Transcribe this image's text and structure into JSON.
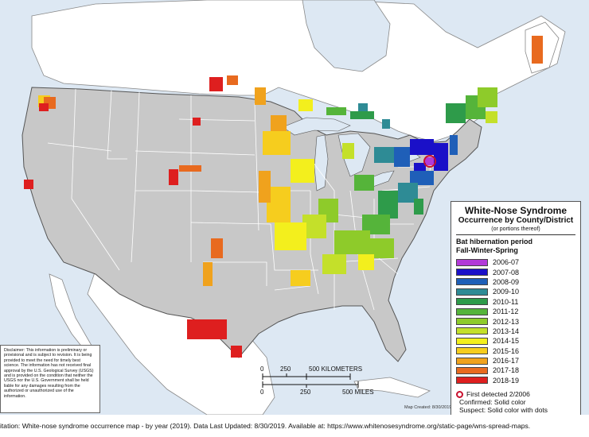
{
  "legend": {
    "title": "White-Nose Syndrome",
    "subtitle": "Occurrence by County/District",
    "note": "(or portions thereof)",
    "period_line1": "Bat hibernation period",
    "period_line2": "Fall-Winter-Spring",
    "items": [
      {
        "label": "2006-07",
        "color": "#b23ad8"
      },
      {
        "label": "2007-08",
        "color": "#1a10c8"
      },
      {
        "label": "2008-09",
        "color": "#1f5fb8"
      },
      {
        "label": "2009-10",
        "color": "#2e8b95"
      },
      {
        "label": "2010-11",
        "color": "#2e9b4a"
      },
      {
        "label": "2011-12",
        "color": "#55b43a"
      },
      {
        "label": "2012-13",
        "color": "#8ecb2a"
      },
      {
        "label": "2013-14",
        "color": "#c4e02a"
      },
      {
        "label": "2014-15",
        "color": "#f3ef1d"
      },
      {
        "label": "2015-16",
        "color": "#f6cd1e"
      },
      {
        "label": "2016-17",
        "color": "#f0a21d"
      },
      {
        "label": "2017-18",
        "color": "#e86a1f"
      },
      {
        "label": "2018-19",
        "color": "#de1f1f"
      }
    ],
    "first_detected": "First detected 2/2006",
    "confirmed": "Confirmed:  Solid color",
    "suspect": "Suspect:  Solid color with dots"
  },
  "scale": {
    "km_ticks": [
      "0",
      "250",
      "500 KILOMETERS"
    ],
    "mile_ticks": [
      "0",
      "250",
      "500 MILES"
    ]
  },
  "disclaimer": "Disclaimer: This information is preliminary or provisional and is subject to revision. It is being provided to meet the need for timely best science. The information has not received final approval by the U.S. Geological Survey (USGS) and is provided on the condition that neither the USGS nor the U.S. Government shall be held liable for any damages resulting from the authorized or unauthorized use of the information.",
  "map_created": "Map Created:  8/30/2019",
  "citation": "itation:  White-nose syndrome occurrence map - by year (2019).  Data Last Updated: 8/30/2019. Available at: https://www.whitenosesyndrome.org/static-page/wns-spread-maps.",
  "map_colors": {
    "water": "#dde8f3",
    "canada_mexico": "#ffffff",
    "usa": "#c8c8c8",
    "border": "#555555"
  }
}
